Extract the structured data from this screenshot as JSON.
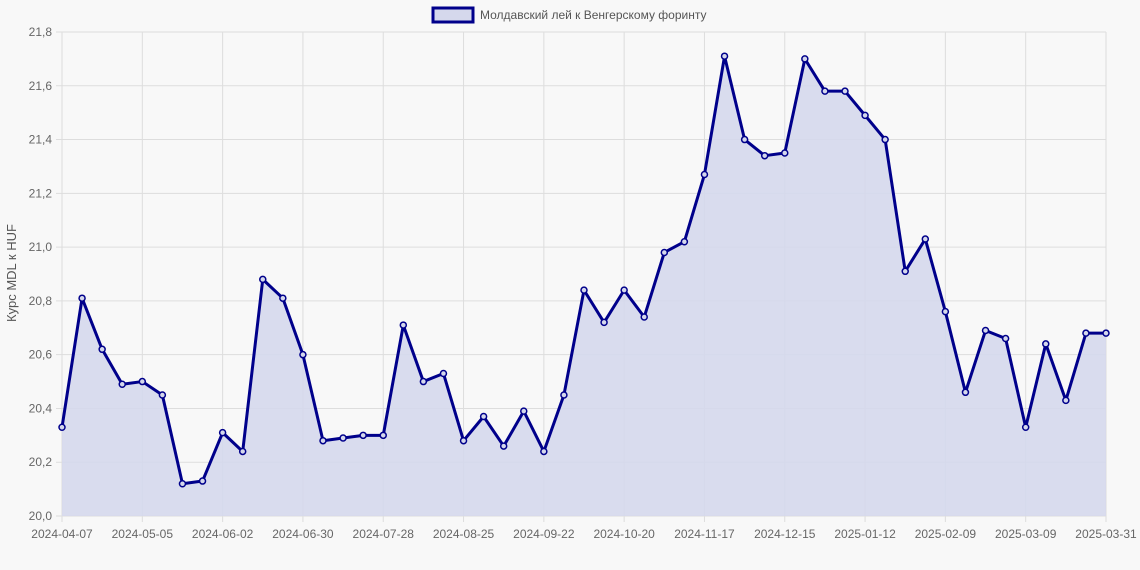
{
  "chart_data": {
    "type": "area",
    "legend": {
      "label": "Молдавский лей к Венгерскому форинту",
      "position": "top-center"
    },
    "ylabel": "Курс MDL к HUF",
    "xlabel": "",
    "ylim": [
      20.0,
      21.8
    ],
    "y_ticks": [
      "20,0",
      "20,2",
      "20,4",
      "20,6",
      "20,8",
      "21,0",
      "21,2",
      "21,4",
      "21,6",
      "21,8"
    ],
    "x_ticks": [
      "2024-04-07",
      "2024-05-05",
      "2024-06-02",
      "2024-06-30",
      "2024-07-28",
      "2024-08-25",
      "2024-09-22",
      "2024-10-20",
      "2024-11-17",
      "2024-12-15",
      "2025-01-12",
      "2025-02-09",
      "2025-03-09",
      "2025-03-31"
    ],
    "grid": true,
    "colors": {
      "line": "#00008b",
      "fill": "#d5d8ec",
      "grid": "#dddddd",
      "background": "#f8f8f8"
    },
    "series": [
      {
        "name": "Молдавский лей к Венгерскому форинту",
        "values": [
          20.33,
          20.81,
          20.62,
          20.49,
          20.5,
          20.45,
          20.12,
          20.13,
          20.31,
          20.24,
          20.88,
          20.81,
          20.6,
          20.28,
          20.29,
          20.3,
          20.3,
          20.71,
          20.5,
          20.53,
          20.28,
          20.37,
          20.26,
          20.39,
          20.24,
          20.45,
          20.84,
          20.72,
          20.84,
          20.74,
          20.98,
          21.02,
          21.27,
          21.71,
          21.4,
          21.34,
          21.35,
          21.7,
          21.58,
          21.58,
          21.49,
          21.4,
          20.91,
          21.03,
          20.76,
          20.46,
          20.69,
          20.66,
          20.33,
          20.64,
          20.43,
          20.68,
          20.68
        ]
      }
    ]
  }
}
